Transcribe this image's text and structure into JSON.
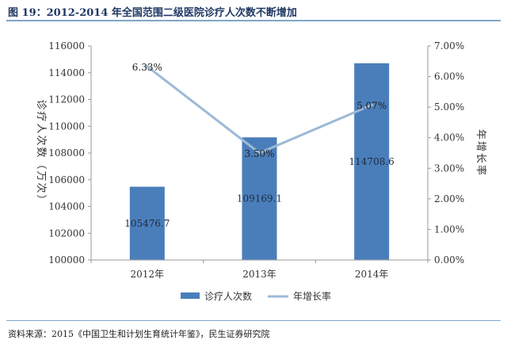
{
  "figure_title": "图 19：2012-2014 年全国范围二级医院诊疗人次数不断增加",
  "source_note": "资料来源：2015《中国卫生和计划生育统计年鉴》，民生证券研究院",
  "colors": {
    "bar": "#4a7ebb",
    "line": "#9cb9d6",
    "title": "#1f3864",
    "rule": "#7fa6c9"
  },
  "chart_data": {
    "type": "bar",
    "categories": [
      "2012年",
      "2013年",
      "2014年"
    ],
    "left_axis": {
      "label": "诊疗人次数（万次）",
      "ylim": [
        100000,
        116000
      ],
      "ticks": [
        "100000",
        "102000",
        "104000",
        "106000",
        "108000",
        "110000",
        "112000",
        "114000",
        "116000"
      ]
    },
    "right_axis": {
      "label": "年增长率",
      "ylim": [
        0,
        7
      ],
      "ticks": [
        "0.00%",
        "1.00%",
        "2.00%",
        "3.00%",
        "4.00%",
        "5.00%",
        "6.00%",
        "7.00%"
      ]
    },
    "series": [
      {
        "name": "诊疗人次数",
        "type": "bar",
        "axis": "left",
        "values": [
          105476.7,
          109169.1,
          114708.6
        ],
        "labels": [
          "105476.7",
          "109169.1",
          "114708.6"
        ]
      },
      {
        "name": "年增长率",
        "type": "line",
        "axis": "right",
        "values": [
          6.33,
          3.5,
          5.07
        ],
        "labels": [
          "6.33%",
          "3.50%",
          "5.07%"
        ]
      }
    ],
    "legend": "bottom"
  }
}
